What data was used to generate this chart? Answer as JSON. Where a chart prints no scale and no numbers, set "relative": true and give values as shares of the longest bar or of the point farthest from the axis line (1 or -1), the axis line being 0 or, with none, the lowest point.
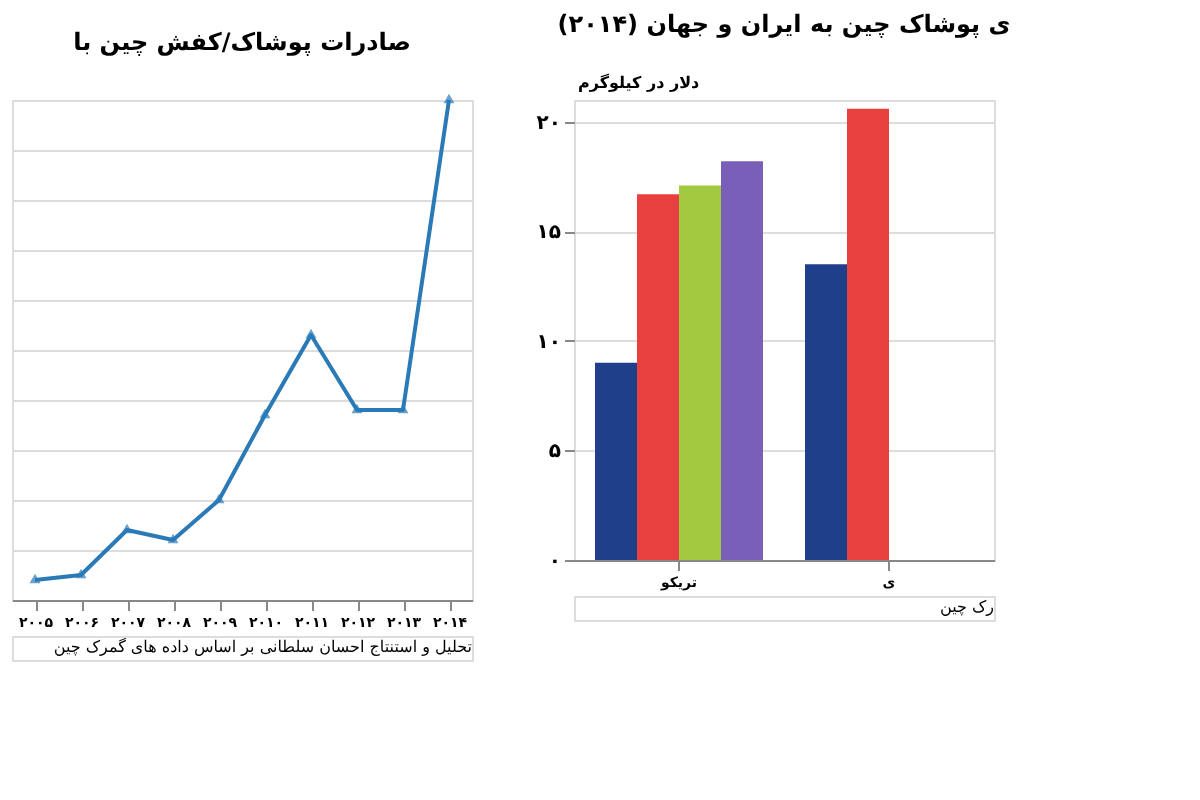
{
  "chart_data": [
    {
      "type": "line",
      "title": "صادرات پوشاک/کفش چین با",
      "relative": true,
      "grid": "y",
      "marker": "triangle",
      "line_style": "solid",
      "legend": false,
      "categories": [
        "۲۰۰۵",
        "۲۰۰۶",
        "۲۰۰۷",
        "۲۰۰۸",
        "۲۰۰۹",
        "۲۰۱۰",
        "۲۰۱۱",
        "۲۰۱۲",
        "۲۰۱۳",
        "۲۰۱۴"
      ],
      "series": [
        {
          "color": "#2a7ab8",
          "values": [
            0.04,
            0.05,
            0.14,
            0.12,
            0.2,
            0.37,
            0.53,
            0.38,
            0.38,
            1
          ]
        }
      ],
      "annotations": [
        "تحلیل و استنتاج احسان سلطانی بر اساس داده های گمرک چین"
      ]
    },
    {
      "type": "bar",
      "title": "ی پوشاک چین به ایران و جهان (۲۰۱۴)",
      "ylabel": "دلار در کیلوگرم",
      "grid": "y",
      "legend": false,
      "categories": [
        "تریکو",
        "ی"
      ],
      "ylim": [
        0,
        21
      ],
      "yticks": [
        {
          "value": 0,
          "label": "۰"
        },
        {
          "value": 5,
          "label": "۵"
        },
        {
          "value": 10,
          "label": "۱۰"
        },
        {
          "value": 15,
          "label": "۱۵"
        },
        {
          "value": 20,
          "label": "۲۰"
        }
      ],
      "series": [
        {
          "color": "#1f3f8a",
          "values": [
            9,
            13.5
          ]
        },
        {
          "color": "#e8403f",
          "values": [
            16.7,
            20.6
          ]
        },
        {
          "color": "#a3c940",
          "values": [
            17.1,
            null
          ]
        },
        {
          "color": "#7a5fb8",
          "values": [
            18.2,
            null
          ]
        }
      ],
      "annotations": [
        "رک چین"
      ]
    }
  ]
}
